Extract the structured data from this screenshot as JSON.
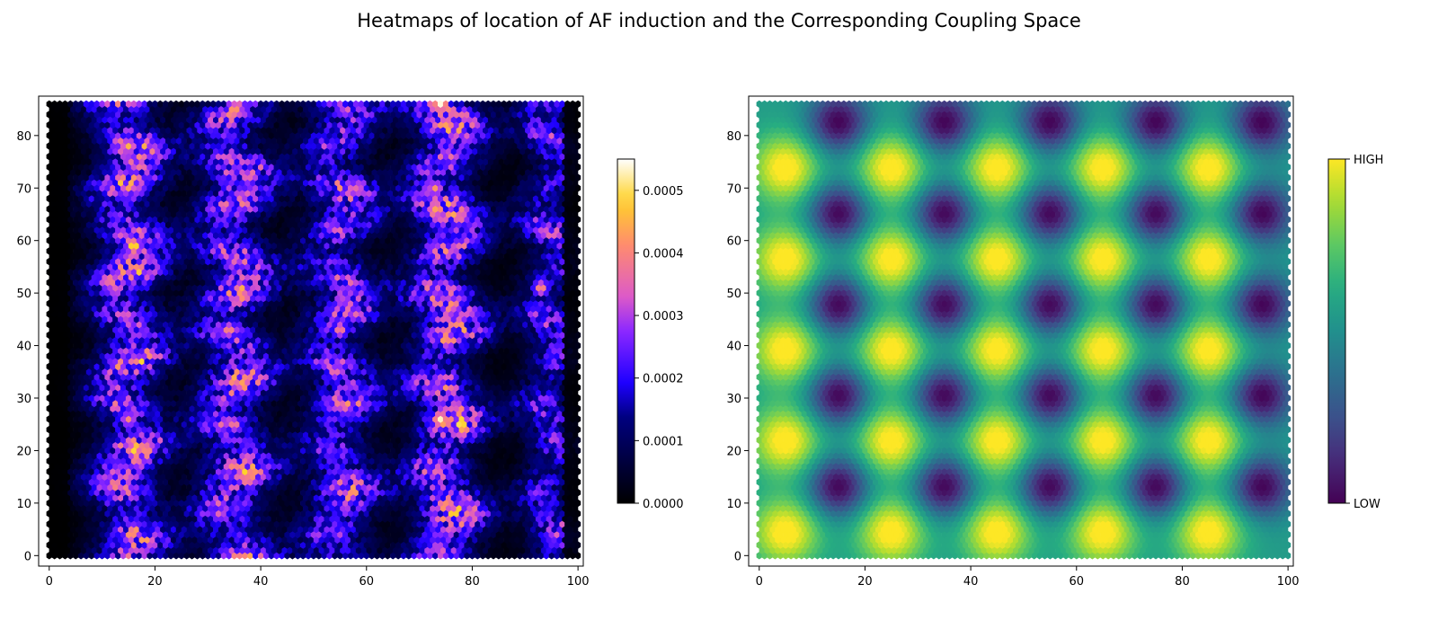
{
  "title": "Heatmaps of location of AF induction and the Corresponding Coupling Space",
  "colors": {
    "left_cmap": "gnuplot2",
    "right_cmap": "viridis",
    "axes_edge": "#000000"
  },
  "chart_data": [
    {
      "type": "heatmap",
      "name": "af-induction-heatmap",
      "cell_shape": "hexagon",
      "xlim": [
        -2,
        101
      ],
      "ylim": [
        -2,
        87.5
      ],
      "x_ticks": [
        0,
        20,
        40,
        60,
        80,
        100
      ],
      "y_ticks": [
        0,
        10,
        20,
        30,
        40,
        50,
        60,
        70,
        80
      ],
      "grid_x": [
        0,
        100
      ],
      "grid_y": [
        0,
        86
      ],
      "colormap": "gnuplot2",
      "colorbar": {
        "min": 0.0,
        "max": 0.00055,
        "ticks": [
          0.0,
          0.0001,
          0.0002,
          0.0003,
          0.0004,
          0.0005
        ],
        "tick_labels": [
          "0.0000",
          "0.0001",
          "0.0002",
          "0.0003",
          "0.0004",
          "0.0005"
        ]
      },
      "pattern": {
        "description_values": "vertical bands of elevated density",
        "band_centers_x": [
          15,
          35,
          55,
          75,
          95
        ],
        "band_peak_values": [
          0.00034,
          0.00033,
          0.0003,
          0.00035,
          0.00025
        ],
        "background_value": 0.0,
        "hotspots": [
          {
            "x": 16,
            "y": 59,
            "value": 0.00052
          },
          {
            "x": 74,
            "y": 26,
            "value": 0.00053
          },
          {
            "x": 74,
            "y": 86,
            "value": 0.00054
          },
          {
            "x": 15,
            "y": 78,
            "value": 0.00045
          },
          {
            "x": 35,
            "y": 85,
            "value": 0.00045
          },
          {
            "x": 34,
            "y": 43,
            "value": 0.00042
          },
          {
            "x": 55,
            "y": 43,
            "value": 0.0004
          },
          {
            "x": 73,
            "y": 70,
            "value": 0.00042
          },
          {
            "x": 93,
            "y": 51,
            "value": 0.00042
          },
          {
            "x": 15,
            "y": 26,
            "value": 0.0004
          },
          {
            "x": 35,
            "y": 25,
            "value": 0.0004
          },
          {
            "x": 54,
            "y": 35,
            "value": 0.00038
          }
        ]
      }
    },
    {
      "type": "heatmap",
      "name": "coupling-space-heatmap",
      "cell_shape": "hexagon",
      "xlim": [
        -2,
        101
      ],
      "ylim": [
        -2,
        87.5
      ],
      "x_ticks": [
        0,
        20,
        40,
        60,
        80,
        100
      ],
      "y_ticks": [
        0,
        10,
        20,
        30,
        40,
        50,
        60,
        70,
        80
      ],
      "grid_x": [
        0,
        100
      ],
      "grid_y": [
        0,
        86
      ],
      "colormap": "viridis",
      "colorbar": {
        "min": 0,
        "max": 1,
        "ticks": [
          0,
          1
        ],
        "tick_labels": [
          "LOW",
          "HIGH"
        ]
      },
      "pattern": {
        "high_spot_centers_x": [
          5,
          25,
          45,
          65,
          85
        ],
        "high_spot_centers_y": [
          4.5,
          21.9,
          39.2,
          56.5,
          73.8
        ],
        "low_spot_centers_x": [
          15,
          35,
          55,
          75,
          95
        ],
        "low_spot_centers_y": [
          13.2,
          30.5,
          47.8,
          65.2,
          82.5
        ],
        "spot_spacing_x": 20,
        "spot_spacing_y": 17.3
      }
    }
  ]
}
